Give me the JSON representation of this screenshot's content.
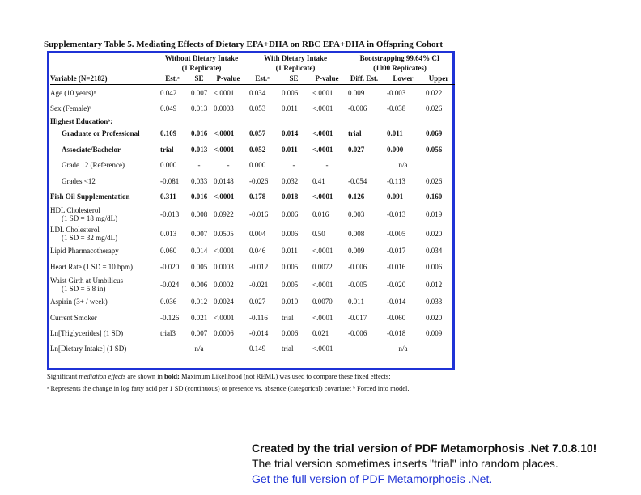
{
  "title": "Supplementary Table 5. Mediating Effects of Dietary EPA+DHA on RBC EPA+DHA in Offspring Cohort",
  "groups": [
    {
      "line1": "Without Dietary Intake",
      "line2": "(1 Replicate)"
    },
    {
      "line1": "With Dietary Intake",
      "line2": "(1 Replicate)"
    },
    {
      "line1": "Bootstrapping 99.64% CI",
      "line2": "(1000 Replicates)"
    }
  ],
  "columns": [
    "Variable (N=2182)",
    "Est.ᵃ",
    "SE",
    "P-value",
    "Est.ᵃ",
    "SE",
    "P-value",
    "Diff. Est.",
    "Lower",
    "Upper"
  ],
  "rows": [
    {
      "label": "Age (10 years)ᵇ",
      "cells": [
        "0.042",
        "0.007",
        "<.0001",
        "0.034",
        "0.006",
        "<.0001",
        "0.009",
        "-0.003",
        "0.022"
      ]
    },
    {
      "label": "Sex (Female)ᵇ",
      "cells": [
        "0.049",
        "0.013",
        "0.0003",
        "0.053",
        "0.011",
        "<.0001",
        "-0.006",
        "-0.038",
        "0.026"
      ]
    },
    {
      "label": "Highest Educationᵇ:",
      "section": true
    },
    {
      "label": "Graduate or Professional",
      "bold": true,
      "indent": true,
      "cells": [
        "0.109",
        "0.016",
        "<.0001",
        "0.057",
        "0.014",
        "<.0001",
        "trial",
        "0.011",
        "0.069"
      ]
    },
    {
      "label": "Associate/Bachelor",
      "bold": true,
      "indent": true,
      "cells": [
        "trial",
        "0.013",
        "<.0001",
        "0.052",
        "0.011",
        "<.0001",
        "0.027",
        "0.000",
        "0.056"
      ]
    },
    {
      "label": "Grade 12 (Reference)",
      "indent": true,
      "cells": [
        "0.000",
        "-",
        "-",
        "0.000",
        "-",
        "-",
        "",
        "n/a",
        ""
      ]
    },
    {
      "label": "Grades <12",
      "indent": true,
      "cells": [
        "-0.081",
        "0.033",
        "0.0148",
        "-0.026",
        "0.032",
        "0.41",
        "-0.054",
        "-0.113",
        "0.026"
      ]
    },
    {
      "label": "Fish Oil Supplementation",
      "bold": true,
      "cells": [
        "0.311",
        "0.016",
        "<.0001",
        "0.178",
        "0.018",
        "<.0001",
        "0.126",
        "0.091",
        "0.160"
      ]
    },
    {
      "label": "HDL Cholesterol",
      "sub": "(1 SD = 18 mg/dL)",
      "cells": [
        "-0.013",
        "0.008",
        "0.0922",
        "-0.016",
        "0.006",
        "0.016",
        "0.003",
        "-0.013",
        "0.019"
      ]
    },
    {
      "label": "LDL Cholesterol",
      "sub": "(1 SD = 32 mg/dL)",
      "cells": [
        "0.013",
        "0.007",
        "0.0505",
        "0.004",
        "0.006",
        "0.50",
        "0.008",
        "-0.005",
        "0.020"
      ]
    },
    {
      "label": "Lipid Pharmacotherapy",
      "cells": [
        "0.060",
        "0.014",
        "<.0001",
        "0.046",
        "0.011",
        "<.0001",
        "0.009",
        "-0.017",
        "0.034"
      ]
    },
    {
      "label": "Heart Rate (1 SD = 10 bpm)",
      "cells": [
        "-0.020",
        "0.005",
        "0.0003",
        "-0.012",
        "0.005",
        "0.0072",
        "-0.006",
        "-0.016",
        "0.006"
      ]
    },
    {
      "label": "Waist Girth at Umbilicus",
      "sub": "(1 SD = 5.8 in)",
      "cells": [
        "-0.024",
        "0.006",
        "0.0002",
        "-0.021",
        "0.005",
        "<.0001",
        "-0.005",
        "-0.020",
        "0.012"
      ]
    },
    {
      "label": "Aspirin (3+ / week)",
      "cells": [
        "0.036",
        "0.012",
        "0.0024",
        "0.027",
        "0.010",
        "0.0070",
        "0.011",
        "-0.014",
        "0.033"
      ]
    },
    {
      "label": "Current Smoker",
      "cells": [
        "-0.126",
        "0.021",
        "<.0001",
        "-0.116",
        "trial",
        "<.0001",
        "-0.017",
        "-0.060",
        "0.020"
      ]
    },
    {
      "label": "Ln[Triglycerides] (1 SD)",
      "cells": [
        "trial3",
        "0.007",
        "0.0006",
        "-0.014",
        "0.006",
        "0.021",
        "-0.006",
        "-0.018",
        "0.009"
      ]
    },
    {
      "label": "Ln[Dietary Intake]  (1 SD)",
      "cells": [
        "",
        "n/a",
        "",
        "0.149",
        "trial",
        "<.0001",
        "",
        "n/a",
        ""
      ]
    }
  ],
  "footnotes": {
    "line1_a": "Significant ",
    "line1_em": "mediation effects",
    "line1_b": " are shown in ",
    "line1_bold": "bold;",
    "line1_c": " Maximum Likelihood (not REML) was used to compare these fixed effects;",
    "line2": "ᵃ Represents the change in log fatty acid per 1 SD (continuous) or presence vs. absence (categorical) covariate; ᵇ Forced into model."
  },
  "trial_notice": {
    "line1": "Created by the trial version of PDF Metamorphosis .Net 7.0.8.10!",
    "line2": "The trial version sometimes inserts \"trial\" into random places.",
    "link": "Get the full version of PDF Metamorphosis .Net."
  },
  "colors": {
    "frame": "#1f33d6",
    "link": "#1f33d6"
  }
}
